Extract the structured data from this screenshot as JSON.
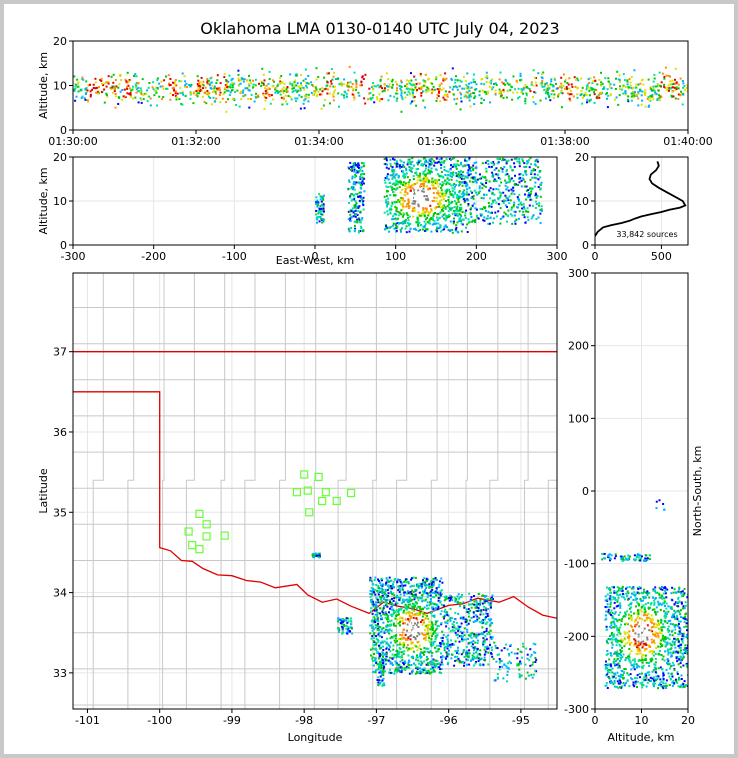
{
  "title": "Oklahoma LMA 0130-0140 UTC July 04, 2023",
  "colors": {
    "density": [
      "#0000ff",
      "#00b0ff",
      "#00e0a0",
      "#00c800",
      "#e0e000",
      "#ff8c00",
      "#e00000",
      "#ffffff",
      "#808080",
      "#000000"
    ],
    "state_border": "#e00000",
    "county_lines": "#c8c8c8",
    "station_marker": "#66ff33",
    "grid": "#e6e6e6"
  },
  "chart_data": [
    {
      "id": "altitude-time",
      "type": "heatmap",
      "ylabel": "Altitude, km",
      "xlim": [
        "01:30:00",
        "01:40:00"
      ],
      "ylim": [
        0,
        20
      ],
      "x_ticks": [
        "01:30:00",
        "01:32:00",
        "01:34:00",
        "01:36:00",
        "01:38:00",
        "01:40:00"
      ],
      "y_ticks": [
        0,
        10,
        20
      ],
      "source_altitude_range_km": [
        2,
        20
      ],
      "dense_altitude_range_km": [
        5,
        15
      ]
    },
    {
      "id": "altitude-eastwest",
      "type": "heatmap",
      "xlabel": "East-West, km",
      "ylabel": "Altitude, km",
      "xlim": [
        -300,
        300
      ],
      "ylim": [
        0,
        20
      ],
      "x_ticks": [
        -300,
        -200,
        -100,
        0,
        100,
        200,
        300
      ],
      "y_ticks": [
        0,
        10,
        20
      ],
      "clusters": [
        {
          "x_range_km": [
            0,
            10
          ],
          "z_range_km": [
            5,
            12
          ]
        },
        {
          "x_range_km": [
            40,
            60
          ],
          "z_range_km": [
            3,
            19
          ]
        },
        {
          "x_range_km": [
            85,
            190
          ],
          "z_range_km": [
            3,
            20
          ],
          "peak_x_km": 130,
          "peak_z_km": 11
        },
        {
          "x_range_km": [
            190,
            280
          ],
          "z_range_km": [
            5,
            20
          ]
        }
      ]
    },
    {
      "id": "altitude-histogram",
      "type": "line",
      "annotation": "33,842 sources",
      "xlim": [
        0,
        700
      ],
      "ylim": [
        0,
        20
      ],
      "x_ticks": [
        0,
        500
      ],
      "y_ticks": [
        0,
        10,
        20
      ],
      "x": [
        0,
        20,
        60,
        120,
        200,
        260,
        300,
        350,
        420,
        500,
        560,
        640,
        680,
        660,
        600,
        540,
        480,
        430,
        410,
        420,
        460,
        480,
        470
      ],
      "y": [
        2,
        3,
        4,
        4.5,
        5,
        5.5,
        6,
        6.5,
        7,
        7.5,
        8,
        8.5,
        9,
        10,
        11,
        12,
        13,
        14,
        15,
        16,
        17,
        18,
        19
      ]
    },
    {
      "id": "plan-view",
      "type": "heatmap",
      "xlabel": "Longitude",
      "ylabel": "Latitude",
      "xlim": [
        -101.2,
        -94.5
      ],
      "ylim": [
        32.55,
        37.98
      ],
      "x_ticks": [
        -101,
        -100,
        -99,
        -98,
        -97,
        -96,
        -95
      ],
      "y_ticks": [
        33,
        34,
        35,
        36,
        37
      ],
      "stations_lonlat": [
        [
          -99.45,
          34.98
        ],
        [
          -99.35,
          34.85
        ],
        [
          -99.6,
          34.76
        ],
        [
          -99.35,
          34.7
        ],
        [
          -99.55,
          34.59
        ],
        [
          -99.45,
          34.54
        ],
        [
          -99.1,
          34.71
        ],
        [
          -98.0,
          35.47
        ],
        [
          -97.8,
          35.44
        ],
        [
          -98.1,
          35.25
        ],
        [
          -97.95,
          35.27
        ],
        [
          -97.7,
          35.25
        ],
        [
          -97.75,
          35.14
        ],
        [
          -97.55,
          35.14
        ],
        [
          -97.35,
          35.24
        ],
        [
          -97.93,
          35.0
        ]
      ],
      "clusters": [
        {
          "lon_range": [
            -97.1,
            -96.1
          ],
          "lat_range": [
            33.0,
            34.2
          ],
          "peak": [
            -96.5,
            33.55
          ]
        },
        {
          "lon_range": [
            -96.1,
            -95.4
          ],
          "lat_range": [
            33.1,
            34.0
          ]
        },
        {
          "lon_range": [
            -95.4,
            -94.8
          ],
          "lat_range": [
            32.9,
            33.4
          ]
        },
        {
          "lon_range": [
            -97.55,
            -97.35
          ],
          "lat_range": [
            33.5,
            33.7
          ]
        },
        {
          "lon_range": [
            -97.0,
            -96.9
          ],
          "lat_range": [
            32.85,
            33.2
          ]
        },
        {
          "lon_range": [
            -97.9,
            -97.78
          ],
          "lat_range": [
            34.45,
            34.5
          ]
        }
      ]
    },
    {
      "id": "northsouth-altitude",
      "type": "heatmap",
      "xlabel": "Altitude, km",
      "ylabel": "North-South, km",
      "xlim": [
        0,
        20
      ],
      "ylim": [
        -300,
        300
      ],
      "x_ticks": [
        0,
        10,
        20
      ],
      "y_ticks": [
        -300,
        -200,
        -100,
        0,
        100,
        200,
        300
      ],
      "clusters": [
        {
          "z_range_km": [
            2,
            20
          ],
          "y_range_km": [
            -270,
            -130
          ],
          "peak_z_km": 10,
          "peak_y_km": -195
        },
        {
          "z_range_km": [
            1,
            12
          ],
          "y_range_km": [
            -95,
            -85
          ]
        },
        {
          "z_range_km": [
            13,
            15
          ],
          "y_range_km": [
            -25,
            -10
          ]
        }
      ]
    }
  ]
}
